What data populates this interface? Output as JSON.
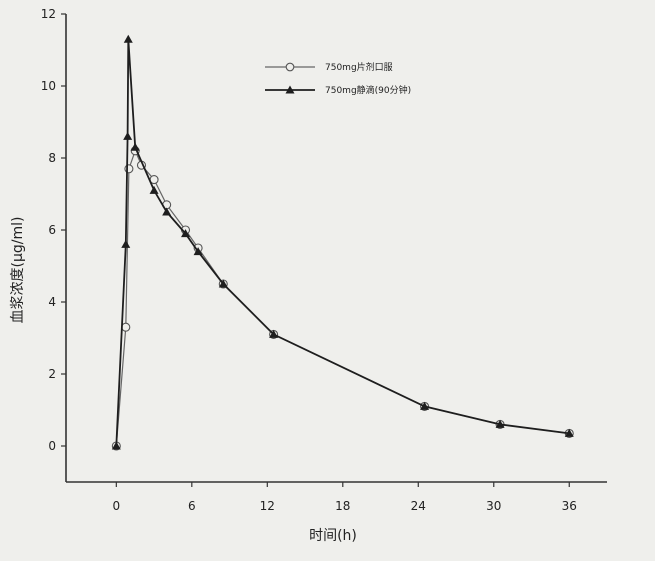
{
  "chart_data": {
    "type": "line",
    "title": "",
    "xlabel": "时间(h)",
    "ylabel": "血浆浓度(μg/ml)",
    "xlim": [
      -4,
      39
    ],
    "ylim": [
      -1,
      12
    ],
    "x_ticks": [
      0,
      6,
      12,
      18,
      24,
      30,
      36
    ],
    "y_ticks": [
      0,
      2,
      4,
      6,
      8,
      10,
      12
    ],
    "grid": false,
    "legend_position": "top-right",
    "series": [
      {
        "name": "750mg片剂口服",
        "marker": "open-circle",
        "color": "#666666",
        "x": [
          0,
          0.75,
          1,
          1.5,
          2,
          3,
          4,
          5.5,
          6.5,
          8.5,
          12.5,
          24.5,
          30.5,
          36
        ],
        "y": [
          0,
          3.3,
          7.7,
          8.2,
          7.8,
          7.4,
          6.7,
          6.0,
          5.5,
          4.5,
          3.1,
          1.1,
          0.6,
          0.35
        ]
      },
      {
        "name": "750mg静滴(90分钟)",
        "marker": "filled-triangle",
        "color": "#1e1e1e",
        "x": [
          0,
          0.75,
          0.9,
          0.95,
          1.5,
          3,
          4,
          5.5,
          6.5,
          8.5,
          12.5,
          24.5,
          30.5,
          36
        ],
        "y": [
          0,
          5.6,
          8.6,
          11.3,
          8.3,
          7.1,
          6.5,
          5.9,
          5.4,
          4.5,
          3.1,
          1.1,
          0.6,
          0.35
        ]
      }
    ]
  }
}
